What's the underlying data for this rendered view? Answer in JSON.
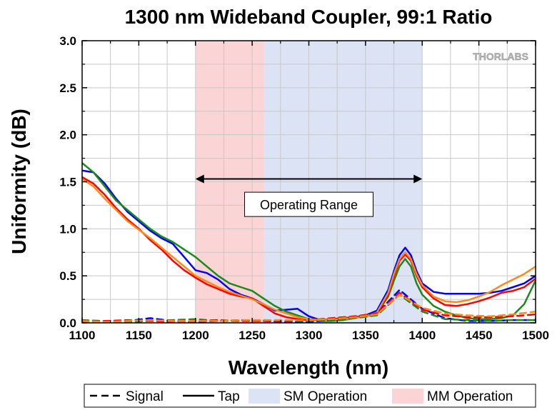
{
  "chart_data": {
    "type": "line",
    "title": "1300 nm Wideband Coupler, 99:1 Ratio",
    "xlabel": "Wavelength (nm)",
    "ylabel": "Uniformity (dB)",
    "xlim": [
      1100,
      1500
    ],
    "ylim": [
      0,
      3.0
    ],
    "x_ticks": [
      1100,
      1150,
      1200,
      1250,
      1300,
      1350,
      1400,
      1450,
      1500
    ],
    "y_ticks": [
      0.0,
      0.5,
      1.0,
      1.5,
      2.0,
      2.5,
      3.0
    ],
    "x_tick_labels": [
      "1100",
      "1150",
      "1200",
      "1250",
      "1300",
      "1350",
      "1400",
      "1450",
      "1500"
    ],
    "y_tick_labels": [
      "0.0",
      "0.5",
      "1.0",
      "1.5",
      "2.0",
      "2.5",
      "3.0"
    ],
    "grid": true,
    "brand_logo": "THORLABS",
    "regions": [
      {
        "label": "MM Operation",
        "x_range": [
          1200,
          1260
        ],
        "color": "#fbd5d6"
      },
      {
        "label": "SM Operation",
        "x_range": [
          1260,
          1400
        ],
        "color": "#dbe3f5"
      }
    ],
    "annotations": [
      {
        "type": "double-arrow",
        "text": "Operating Range",
        "x_range": [
          1200,
          1400
        ],
        "y": 1.53,
        "label_y": 1.26
      }
    ],
    "legend": {
      "placement": "bottom",
      "entries": [
        {
          "label": "Signal",
          "style": "dashed"
        },
        {
          "label": "Tap",
          "style": "solid"
        },
        {
          "label": "SM Operation",
          "style": "patch",
          "color": "#dbe3f5"
        },
        {
          "label": "MM Operation",
          "style": "patch",
          "color": "#fbd5d6"
        }
      ]
    },
    "series": [
      {
        "style": "solid",
        "color": "#0000ff",
        "x": [
          1100,
          1110,
          1120,
          1130,
          1140,
          1150,
          1160,
          1170,
          1180,
          1190,
          1200,
          1210,
          1220,
          1230,
          1240,
          1250,
          1260,
          1270,
          1280,
          1290,
          1300,
          1310,
          1320,
          1330,
          1340,
          1350,
          1360,
          1370,
          1375,
          1380,
          1385,
          1390,
          1395,
          1400,
          1410,
          1420,
          1430,
          1440,
          1450,
          1460,
          1470,
          1480,
          1490,
          1500
        ],
        "y": [
          1.62,
          1.6,
          1.48,
          1.32,
          1.18,
          1.08,
          0.98,
          0.9,
          0.84,
          0.7,
          0.56,
          0.53,
          0.46,
          0.36,
          0.3,
          0.26,
          0.2,
          0.13,
          0.14,
          0.15,
          0.07,
          0.03,
          0.03,
          0.04,
          0.06,
          0.08,
          0.13,
          0.35,
          0.55,
          0.72,
          0.8,
          0.72,
          0.55,
          0.42,
          0.33,
          0.31,
          0.31,
          0.31,
          0.31,
          0.32,
          0.34,
          0.38,
          0.42,
          0.5
        ]
      },
      {
        "style": "solid",
        "color": "#1a8a1a",
        "x": [
          1100,
          1110,
          1120,
          1130,
          1140,
          1150,
          1160,
          1170,
          1180,
          1190,
          1200,
          1210,
          1220,
          1230,
          1240,
          1250,
          1260,
          1270,
          1280,
          1290,
          1300,
          1310,
          1320,
          1330,
          1340,
          1350,
          1360,
          1370,
          1375,
          1380,
          1385,
          1390,
          1395,
          1400,
          1410,
          1420,
          1430,
          1440,
          1450,
          1460,
          1470,
          1480,
          1490,
          1500
        ],
        "y": [
          1.7,
          1.6,
          1.45,
          1.3,
          1.2,
          1.1,
          1.0,
          0.92,
          0.86,
          0.78,
          0.7,
          0.6,
          0.5,
          0.42,
          0.38,
          0.34,
          0.26,
          0.18,
          0.12,
          0.08,
          0.04,
          0.02,
          0.02,
          0.03,
          0.05,
          0.07,
          0.1,
          0.28,
          0.45,
          0.6,
          0.68,
          0.6,
          0.42,
          0.3,
          0.18,
          0.12,
          0.08,
          0.05,
          0.04,
          0.04,
          0.05,
          0.08,
          0.2,
          0.45
        ]
      },
      {
        "style": "solid",
        "color": "#ff0000",
        "x": [
          1100,
          1110,
          1120,
          1130,
          1140,
          1150,
          1160,
          1170,
          1180,
          1190,
          1200,
          1210,
          1220,
          1230,
          1240,
          1250,
          1260,
          1270,
          1280,
          1290,
          1300,
          1310,
          1320,
          1330,
          1340,
          1350,
          1360,
          1370,
          1375,
          1380,
          1385,
          1390,
          1395,
          1400,
          1410,
          1420,
          1430,
          1440,
          1450,
          1460,
          1470,
          1480,
          1490,
          1500
        ],
        "y": [
          1.55,
          1.48,
          1.36,
          1.22,
          1.1,
          1.0,
          0.88,
          0.78,
          0.66,
          0.56,
          0.48,
          0.41,
          0.36,
          0.31,
          0.28,
          0.26,
          0.18,
          0.1,
          0.06,
          0.04,
          0.03,
          0.03,
          0.04,
          0.05,
          0.06,
          0.07,
          0.1,
          0.3,
          0.5,
          0.66,
          0.73,
          0.66,
          0.5,
          0.38,
          0.26,
          0.19,
          0.18,
          0.2,
          0.23,
          0.27,
          0.32,
          0.34,
          0.38,
          0.47
        ]
      },
      {
        "style": "solid",
        "color": "#ff8a1a",
        "x": [
          1100,
          1110,
          1120,
          1130,
          1140,
          1150,
          1160,
          1170,
          1180,
          1190,
          1200,
          1210,
          1220,
          1230,
          1240,
          1250,
          1260,
          1270,
          1280,
          1290,
          1300,
          1310,
          1320,
          1330,
          1340,
          1350,
          1360,
          1370,
          1375,
          1380,
          1385,
          1390,
          1395,
          1400,
          1410,
          1420,
          1430,
          1440,
          1450,
          1460,
          1470,
          1480,
          1490,
          1500
        ],
        "y": [
          1.53,
          1.45,
          1.32,
          1.2,
          1.08,
          0.99,
          0.9,
          0.8,
          0.7,
          0.6,
          0.5,
          0.44,
          0.38,
          0.33,
          0.29,
          0.25,
          0.2,
          0.14,
          0.1,
          0.06,
          0.04,
          0.03,
          0.03,
          0.04,
          0.05,
          0.07,
          0.11,
          0.32,
          0.52,
          0.68,
          0.75,
          0.68,
          0.52,
          0.4,
          0.28,
          0.23,
          0.22,
          0.24,
          0.28,
          0.33,
          0.4,
          0.46,
          0.52,
          0.6
        ]
      },
      {
        "style": "dashed",
        "color": "#0000ff",
        "x": [
          1100,
          1120,
          1140,
          1160,
          1180,
          1200,
          1220,
          1240,
          1260,
          1280,
          1300,
          1320,
          1340,
          1360,
          1380,
          1400,
          1420,
          1440,
          1460,
          1480,
          1500
        ],
        "y": [
          0.02,
          0.01,
          0.02,
          0.05,
          0.02,
          0.01,
          0.02,
          0.03,
          0.02,
          0.01,
          0.01,
          0.03,
          0.06,
          0.1,
          0.35,
          0.15,
          0.05,
          0.02,
          0.02,
          0.03,
          0.03
        ]
      },
      {
        "style": "dashed",
        "color": "#1a8a1a",
        "x": [
          1100,
          1120,
          1140,
          1160,
          1180,
          1200,
          1220,
          1240,
          1260,
          1280,
          1300,
          1320,
          1340,
          1360,
          1380,
          1400,
          1420,
          1440,
          1460,
          1480,
          1500
        ],
        "y": [
          0.03,
          0.02,
          0.01,
          0.02,
          0.03,
          0.04,
          0.02,
          0.02,
          0.03,
          0.02,
          0.02,
          0.03,
          0.05,
          0.08,
          0.3,
          0.12,
          0.04,
          0.03,
          0.02,
          0.03,
          0.03
        ]
      },
      {
        "style": "dashed",
        "color": "#ff0000",
        "x": [
          1100,
          1120,
          1140,
          1160,
          1180,
          1200,
          1220,
          1240,
          1260,
          1280,
          1300,
          1320,
          1340,
          1360,
          1380,
          1400,
          1420,
          1440,
          1460,
          1480,
          1500
        ],
        "y": [
          0.01,
          0.02,
          0.03,
          0.02,
          0.01,
          0.02,
          0.03,
          0.02,
          0.02,
          0.02,
          0.03,
          0.05,
          0.07,
          0.1,
          0.32,
          0.14,
          0.08,
          0.06,
          0.06,
          0.07,
          0.09
        ]
      },
      {
        "style": "dashed",
        "color": "#ff8a1a",
        "x": [
          1100,
          1120,
          1140,
          1160,
          1180,
          1200,
          1220,
          1240,
          1260,
          1280,
          1300,
          1320,
          1340,
          1360,
          1380,
          1400,
          1420,
          1440,
          1460,
          1480,
          1500
        ],
        "y": [
          0.02,
          0.01,
          0.02,
          0.03,
          0.02,
          0.02,
          0.02,
          0.03,
          0.03,
          0.03,
          0.03,
          0.04,
          0.06,
          0.09,
          0.3,
          0.16,
          0.1,
          0.08,
          0.07,
          0.09,
          0.12
        ]
      }
    ]
  }
}
